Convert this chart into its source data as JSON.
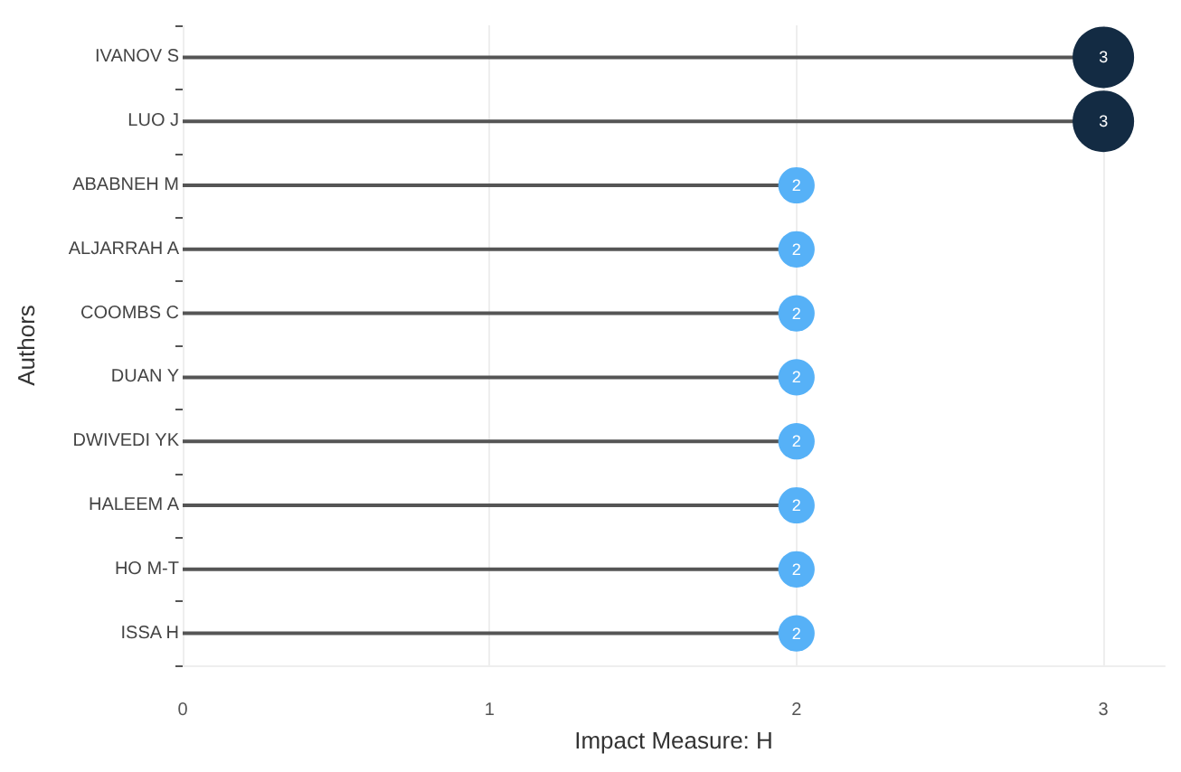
{
  "chart_data": {
    "type": "lollipop",
    "orientation": "horizontal",
    "xlabel": "Impact Measure: H",
    "ylabel": "Authors",
    "categories": [
      "IVANOV S",
      "LUO J",
      "ABABNEH M",
      "ALJARRAH A",
      "COOMBS C",
      "DUAN Y",
      "DWIVEDI YK",
      "HALEEM A",
      "HO M-T",
      "ISSA H"
    ],
    "values": [
      3,
      3,
      2,
      2,
      2,
      2,
      2,
      2,
      2,
      2
    ],
    "colors": [
      "#132b43",
      "#132b43",
      "#56b1f7",
      "#56b1f7",
      "#56b1f7",
      "#56b1f7",
      "#56b1f7",
      "#56b1f7",
      "#56b1f7",
      "#56b1f7"
    ],
    "sizes": [
      1,
      1,
      0.35,
      0.35,
      0.35,
      0.35,
      0.35,
      0.35,
      0.35,
      0.35
    ],
    "xlim": [
      0,
      3.2
    ],
    "xticks": [
      0,
      1,
      2,
      3
    ],
    "grid": "x",
    "data_labels": true,
    "marker": "circle"
  }
}
